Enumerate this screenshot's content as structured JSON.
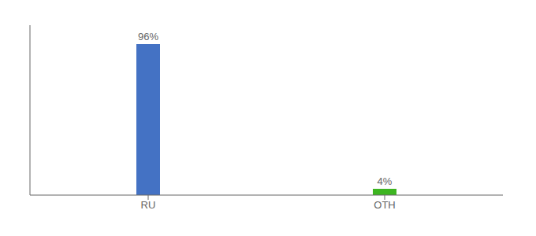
{
  "chart_data": {
    "type": "bar",
    "categories": [
      "RU",
      "OTH"
    ],
    "values": [
      96,
      4
    ],
    "value_labels": [
      "96%",
      "4%"
    ],
    "colors": [
      "#4472c4",
      "#3db521"
    ],
    "ylim": [
      0,
      108
    ],
    "data_labels": true,
    "tick_labels": "x",
    "grid": false
  }
}
